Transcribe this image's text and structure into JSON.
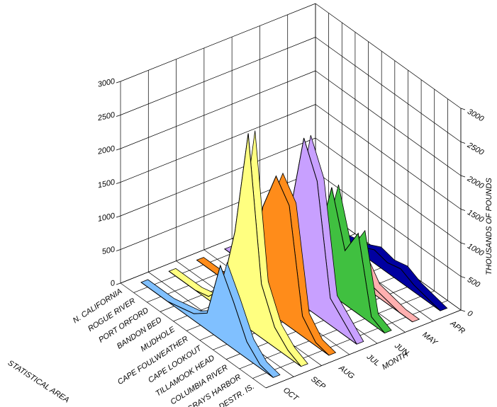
{
  "chart_data": {
    "type": "ribbon3d",
    "x_label": "STATISTICAL AREA",
    "depth_label": "MONTH",
    "y_label": "THOUSANDS OF POUNDS",
    "categories": [
      "N. CALIFORNIA",
      "ROGUE RIVER",
      "PORT ORFORD",
      "BANDON BED",
      "MUDHOLE",
      "CAPE FOULWEATHER",
      "CAPE LOOKOUT",
      "TILLAMOOK HEAD",
      "COLUMBIA RIVER",
      "GRAYS HARBOR",
      "DESTR. IS."
    ],
    "series": [
      {
        "name": "OCT",
        "color": "#80c0ff",
        "values": [
          0,
          0,
          0,
          50,
          100,
          250,
          1100,
          700,
          250,
          50,
          0
        ]
      },
      {
        "name": "SEP",
        "color": "#ffff80",
        "values": [
          0,
          0,
          0,
          50,
          300,
          1300,
          2900,
          800,
          300,
          100,
          0
        ]
      },
      {
        "name": "AUG",
        "color": "#ff8c1a",
        "values": [
          0,
          0,
          0,
          100,
          200,
          1500,
          2100,
          1800,
          300,
          50,
          0
        ]
      },
      {
        "name": "JUL",
        "color": "#c8a0ff",
        "values": [
          0,
          0,
          0,
          100,
          250,
          1300,
          2500,
          2000,
          400,
          200,
          0
        ]
      },
      {
        "name": "JUN",
        "color": "#40c040",
        "values": [
          0,
          0,
          0,
          50,
          100,
          700,
          1600,
          800,
          1200,
          100,
          0
        ]
      },
      {
        "name": "MAY",
        "color": "#ffb0b0",
        "values": [
          0,
          0,
          0,
          50,
          100,
          200,
          400,
          100,
          50,
          0,
          0
        ]
      },
      {
        "name": "APR",
        "color": "#0000a0",
        "values": [
          0,
          0,
          0,
          50,
          100,
          200,
          150,
          200,
          100,
          50,
          0
        ]
      }
    ],
    "ylim": [
      0,
      3000
    ],
    "yticks": [
      0,
      500,
      1000,
      1500,
      2000,
      2500,
      3000
    ],
    "grid": true
  }
}
